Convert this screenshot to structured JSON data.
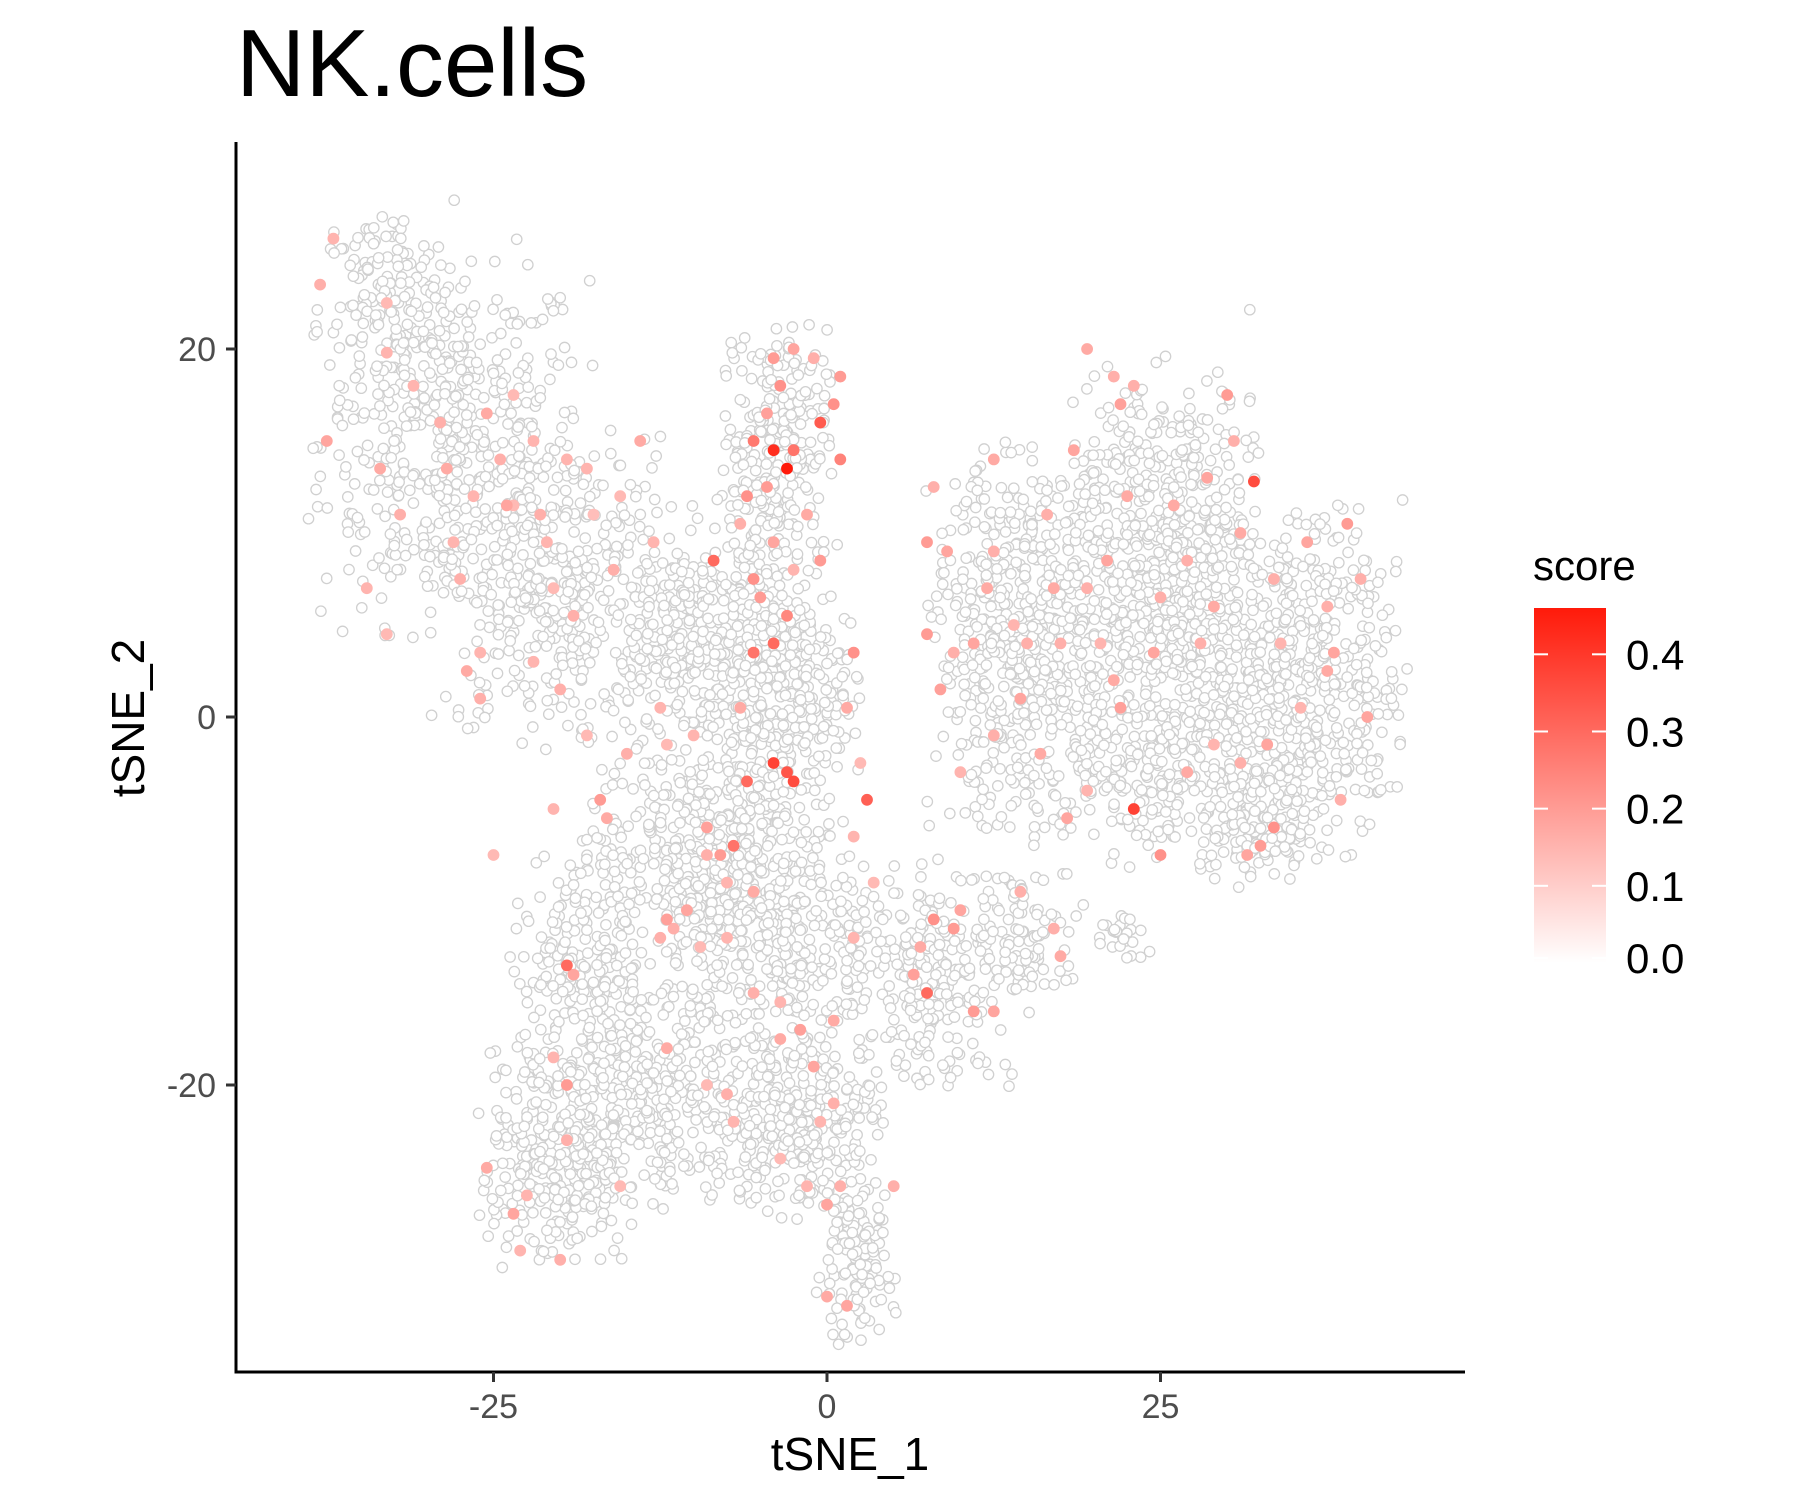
{
  "chart_data": {
    "type": "scatter",
    "title": "NK.cells",
    "xlabel": "tSNE_1",
    "ylabel": "tSNE_2",
    "xlim": [
      -45,
      48
    ],
    "ylim": [
      -36,
      31
    ],
    "x_ticks": [
      {
        "value": -25,
        "label": "-25"
      },
      {
        "value": 0,
        "label": "0"
      },
      {
        "value": 25,
        "label": "25"
      }
    ],
    "y_ticks": [
      {
        "value": -20,
        "label": "-20"
      },
      {
        "value": 0,
        "label": "0"
      },
      {
        "value": 20,
        "label": "20"
      }
    ],
    "grid": false,
    "point_outline_color": "#d0d0d0",
    "color_scale": {
      "title": "score",
      "low_color": "#ffffff",
      "high_color": "#ff1a0a",
      "min": 0,
      "max": 0.46,
      "breaks": [
        {
          "value": 0.0,
          "label": "0.0"
        },
        {
          "value": 0.1,
          "label": "0.1"
        },
        {
          "value": 0.2,
          "label": "0.2"
        },
        {
          "value": 0.3,
          "label": "0.3"
        },
        {
          "value": 0.4,
          "label": "0.4"
        }
      ],
      "legend_position": "right"
    },
    "points": [
      {
        "x": -37.5,
        "y": 15.0,
        "score": 0.18
      },
      {
        "x": -38.0,
        "y": 23.5,
        "score": 0.16
      },
      {
        "x": -33.5,
        "y": 13.5,
        "score": 0.17
      },
      {
        "x": -33.0,
        "y": 19.8,
        "score": 0.15
      },
      {
        "x": -32.0,
        "y": 11.0,
        "score": 0.16
      },
      {
        "x": -34.5,
        "y": 7.0,
        "score": 0.15
      },
      {
        "x": -33.0,
        "y": 4.5,
        "score": 0.14
      },
      {
        "x": -29.0,
        "y": 16.0,
        "score": 0.16
      },
      {
        "x": -28.5,
        "y": 13.5,
        "score": 0.17
      },
      {
        "x": -28.0,
        "y": 9.5,
        "score": 0.15
      },
      {
        "x": -27.5,
        "y": 7.5,
        "score": 0.16
      },
      {
        "x": -26.5,
        "y": 12.0,
        "score": 0.15
      },
      {
        "x": -25.5,
        "y": 16.5,
        "score": 0.17
      },
      {
        "x": -24.5,
        "y": 14.0,
        "score": 0.16
      },
      {
        "x": -24.0,
        "y": 11.5,
        "score": 0.18
      },
      {
        "x": -23.5,
        "y": 11.5,
        "score": 0.14
      },
      {
        "x": -22.0,
        "y": 15.0,
        "score": 0.15
      },
      {
        "x": -21.5,
        "y": 11.0,
        "score": 0.16
      },
      {
        "x": -21.0,
        "y": 9.5,
        "score": 0.15
      },
      {
        "x": -20.5,
        "y": 7.0,
        "score": 0.14
      },
      {
        "x": -19.0,
        "y": 5.5,
        "score": 0.16
      },
      {
        "x": -18.0,
        "y": 13.5,
        "score": 0.15
      },
      {
        "x": -16.0,
        "y": 8.0,
        "score": 0.16
      },
      {
        "x": -14.0,
        "y": 15.0,
        "score": 0.17
      },
      {
        "x": -15.5,
        "y": 12.0,
        "score": 0.14
      },
      {
        "x": -26.0,
        "y": 3.5,
        "score": 0.15
      },
      {
        "x": -27.0,
        "y": 2.5,
        "score": 0.17
      },
      {
        "x": -26.0,
        "y": 1.0,
        "score": 0.16
      },
      {
        "x": -22.0,
        "y": 3.0,
        "score": 0.15
      },
      {
        "x": -20.0,
        "y": 1.5,
        "score": 0.16
      },
      {
        "x": -18.0,
        "y": -1.0,
        "score": 0.14
      },
      {
        "x": -16.5,
        "y": -5.5,
        "score": 0.17
      },
      {
        "x": -17.0,
        "y": -4.5,
        "score": 0.2
      },
      {
        "x": -20.5,
        "y": -5.0,
        "score": 0.15
      },
      {
        "x": -25.0,
        "y": -7.5,
        "score": 0.14
      },
      {
        "x": -37.0,
        "y": 26.0,
        "score": 0.15
      },
      {
        "x": -33.0,
        "y": 22.5,
        "score": 0.14
      },
      {
        "x": -31.0,
        "y": 18.0,
        "score": 0.15
      },
      {
        "x": -23.5,
        "y": 17.5,
        "score": 0.14
      },
      {
        "x": -19.5,
        "y": 14.0,
        "score": 0.15
      },
      {
        "x": -17.5,
        "y": 11.0,
        "score": 0.13
      },
      {
        "x": -13.0,
        "y": 9.5,
        "score": 0.15
      },
      {
        "x": -4.0,
        "y": 19.5,
        "score": 0.2
      },
      {
        "x": -3.5,
        "y": 18.0,
        "score": 0.22
      },
      {
        "x": -2.5,
        "y": 20.0,
        "score": 0.18
      },
      {
        "x": -1.0,
        "y": 19.5,
        "score": 0.16
      },
      {
        "x": 1.0,
        "y": 18.5,
        "score": 0.2
      },
      {
        "x": 0.5,
        "y": 17.0,
        "score": 0.22
      },
      {
        "x": -4.5,
        "y": 16.5,
        "score": 0.19
      },
      {
        "x": -5.5,
        "y": 15.0,
        "score": 0.27
      },
      {
        "x": -4.0,
        "y": 14.5,
        "score": 0.42
      },
      {
        "x": -3.0,
        "y": 13.5,
        "score": 0.46
      },
      {
        "x": -2.5,
        "y": 14.5,
        "score": 0.28
      },
      {
        "x": -0.5,
        "y": 16.0,
        "score": 0.33
      },
      {
        "x": 1.0,
        "y": 14.0,
        "score": 0.25
      },
      {
        "x": -6.0,
        "y": 12.0,
        "score": 0.22
      },
      {
        "x": -4.5,
        "y": 12.5,
        "score": 0.2
      },
      {
        "x": -1.5,
        "y": 11.0,
        "score": 0.17
      },
      {
        "x": -6.5,
        "y": 10.5,
        "score": 0.16
      },
      {
        "x": -4.0,
        "y": 9.5,
        "score": 0.18
      },
      {
        "x": -8.5,
        "y": 8.5,
        "score": 0.3
      },
      {
        "x": -5.5,
        "y": 7.5,
        "score": 0.22
      },
      {
        "x": -2.5,
        "y": 8.0,
        "score": 0.15
      },
      {
        "x": -0.5,
        "y": 8.5,
        "score": 0.2
      },
      {
        "x": -5.0,
        "y": 6.5,
        "score": 0.2
      },
      {
        "x": -3.0,
        "y": 5.5,
        "score": 0.24
      },
      {
        "x": -4.0,
        "y": 4.0,
        "score": 0.3
      },
      {
        "x": -5.5,
        "y": 3.5,
        "score": 0.28
      },
      {
        "x": -6.5,
        "y": 0.5,
        "score": 0.17
      },
      {
        "x": -4.0,
        "y": -2.5,
        "score": 0.38
      },
      {
        "x": -3.0,
        "y": -3.0,
        "score": 0.34
      },
      {
        "x": -2.5,
        "y": -3.5,
        "score": 0.36
      },
      {
        "x": -6.0,
        "y": -3.5,
        "score": 0.3
      },
      {
        "x": -9.0,
        "y": -6.0,
        "score": 0.19
      },
      {
        "x": -7.0,
        "y": -7.0,
        "score": 0.28
      },
      {
        "x": -8.0,
        "y": -7.5,
        "score": 0.2
      },
      {
        "x": -5.5,
        "y": -9.5,
        "score": 0.17
      },
      {
        "x": -7.5,
        "y": -9.0,
        "score": 0.15
      },
      {
        "x": -10.5,
        "y": -10.5,
        "score": 0.18
      },
      {
        "x": -12.0,
        "y": -11.0,
        "score": 0.19
      },
      {
        "x": -11.5,
        "y": -11.5,
        "score": 0.16
      },
      {
        "x": -9.5,
        "y": -12.5,
        "score": 0.14
      },
      {
        "x": -12.5,
        "y": -12.0,
        "score": 0.16
      },
      {
        "x": -19.5,
        "y": -13.5,
        "score": 0.3
      },
      {
        "x": -19.0,
        "y": -14.0,
        "score": 0.18
      },
      {
        "x": -12.0,
        "y": -18.0,
        "score": 0.17
      },
      {
        "x": -20.5,
        "y": -18.5,
        "score": 0.15
      },
      {
        "x": -19.5,
        "y": -20.0,
        "score": 0.2
      },
      {
        "x": -9.0,
        "y": -20.0,
        "score": 0.14
      },
      {
        "x": -7.5,
        "y": -20.5,
        "score": 0.16
      },
      {
        "x": -7.0,
        "y": -22.0,
        "score": 0.15
      },
      {
        "x": -19.5,
        "y": -23.0,
        "score": 0.16
      },
      {
        "x": -25.5,
        "y": -24.5,
        "score": 0.17
      },
      {
        "x": -22.5,
        "y": -26.0,
        "score": 0.15
      },
      {
        "x": -23.5,
        "y": -27.0,
        "score": 0.18
      },
      {
        "x": -23.0,
        "y": -29.0,
        "score": 0.15
      },
      {
        "x": -20.0,
        "y": -29.5,
        "score": 0.16
      },
      {
        "x": -15.5,
        "y": -25.5,
        "score": 0.14
      },
      {
        "x": -5.5,
        "y": -15.0,
        "score": 0.16
      },
      {
        "x": -3.5,
        "y": -15.5,
        "score": 0.15
      },
      {
        "x": -2.0,
        "y": -17.0,
        "score": 0.19
      },
      {
        "x": -3.5,
        "y": -17.5,
        "score": 0.17
      },
      {
        "x": 0.5,
        "y": -16.5,
        "score": 0.17
      },
      {
        "x": -1.0,
        "y": -19.0,
        "score": 0.18
      },
      {
        "x": 0.5,
        "y": -21.0,
        "score": 0.16
      },
      {
        "x": -0.5,
        "y": -22.0,
        "score": 0.15
      },
      {
        "x": -3.5,
        "y": -24.0,
        "score": 0.14
      },
      {
        "x": -1.5,
        "y": -25.5,
        "score": 0.15
      },
      {
        "x": 0.0,
        "y": -26.5,
        "score": 0.18
      },
      {
        "x": 1.0,
        "y": -25.5,
        "score": 0.16
      },
      {
        "x": 0.0,
        "y": -31.5,
        "score": 0.17
      },
      {
        "x": 1.5,
        "y": -32.0,
        "score": 0.18
      },
      {
        "x": 5.0,
        "y": -25.5,
        "score": 0.16
      },
      {
        "x": 2.0,
        "y": -6.5,
        "score": 0.15
      },
      {
        "x": 3.0,
        "y": -4.5,
        "score": 0.32
      },
      {
        "x": 2.5,
        "y": -2.5,
        "score": 0.14
      },
      {
        "x": 1.5,
        "y": 0.5,
        "score": 0.17
      },
      {
        "x": 2.0,
        "y": 3.5,
        "score": 0.22
      },
      {
        "x": 8.0,
        "y": 12.5,
        "score": 0.16
      },
      {
        "x": 7.5,
        "y": 9.5,
        "score": 0.2
      },
      {
        "x": 9.0,
        "y": 9.0,
        "score": 0.18
      },
      {
        "x": 7.5,
        "y": 4.5,
        "score": 0.2
      },
      {
        "x": 8.5,
        "y": 1.5,
        "score": 0.19
      },
      {
        "x": 9.5,
        "y": 3.5,
        "score": 0.16
      },
      {
        "x": 11.0,
        "y": 4.0,
        "score": 0.18
      },
      {
        "x": 12.0,
        "y": 7.0,
        "score": 0.17
      },
      {
        "x": 12.5,
        "y": 9.0,
        "score": 0.16
      },
      {
        "x": 12.5,
        "y": 14.0,
        "score": 0.17
      },
      {
        "x": 14.0,
        "y": 5.0,
        "score": 0.15
      },
      {
        "x": 15.0,
        "y": 4.0,
        "score": 0.16
      },
      {
        "x": 14.5,
        "y": 1.0,
        "score": 0.18
      },
      {
        "x": 16.5,
        "y": 11.0,
        "score": 0.16
      },
      {
        "x": 17.0,
        "y": 7.0,
        "score": 0.17
      },
      {
        "x": 17.5,
        "y": 4.0,
        "score": 0.16
      },
      {
        "x": 18.5,
        "y": 14.5,
        "score": 0.18
      },
      {
        "x": 19.5,
        "y": 20.0,
        "score": 0.17
      },
      {
        "x": 21.5,
        "y": 18.5,
        "score": 0.16
      },
      {
        "x": 22.0,
        "y": 17.0,
        "score": 0.19
      },
      {
        "x": 23.0,
        "y": 18.0,
        "score": 0.16
      },
      {
        "x": 22.5,
        "y": 12.0,
        "score": 0.17
      },
      {
        "x": 21.0,
        "y": 8.5,
        "score": 0.18
      },
      {
        "x": 19.5,
        "y": 7.0,
        "score": 0.16
      },
      {
        "x": 20.5,
        "y": 4.0,
        "score": 0.15
      },
      {
        "x": 21.5,
        "y": 2.0,
        "score": 0.17
      },
      {
        "x": 22.0,
        "y": 0.5,
        "score": 0.19
      },
      {
        "x": 23.0,
        "y": -5.0,
        "score": 0.38
      },
      {
        "x": 24.5,
        "y": 3.5,
        "score": 0.18
      },
      {
        "x": 25.0,
        "y": 6.5,
        "score": 0.16
      },
      {
        "x": 26.0,
        "y": 11.5,
        "score": 0.17
      },
      {
        "x": 27.0,
        "y": 8.5,
        "score": 0.16
      },
      {
        "x": 28.5,
        "y": 13.0,
        "score": 0.18
      },
      {
        "x": 29.0,
        "y": 6.0,
        "score": 0.17
      },
      {
        "x": 28.0,
        "y": 4.0,
        "score": 0.16
      },
      {
        "x": 30.0,
        "y": 17.5,
        "score": 0.2
      },
      {
        "x": 30.5,
        "y": 15.0,
        "score": 0.16
      },
      {
        "x": 32.0,
        "y": 12.8,
        "score": 0.36
      },
      {
        "x": 31.0,
        "y": 10.0,
        "score": 0.17
      },
      {
        "x": 33.5,
        "y": 7.5,
        "score": 0.16
      },
      {
        "x": 34.0,
        "y": 4.0,
        "score": 0.15
      },
      {
        "x": 36.0,
        "y": 9.5,
        "score": 0.18
      },
      {
        "x": 37.5,
        "y": 6.0,
        "score": 0.16
      },
      {
        "x": 39.0,
        "y": 10.5,
        "score": 0.2
      },
      {
        "x": 40.0,
        "y": 7.5,
        "score": 0.16
      },
      {
        "x": 38.0,
        "y": 3.5,
        "score": 0.18
      },
      {
        "x": 37.5,
        "y": 2.5,
        "score": 0.17
      },
      {
        "x": 35.5,
        "y": 0.5,
        "score": 0.15
      },
      {
        "x": 33.0,
        "y": -1.5,
        "score": 0.18
      },
      {
        "x": 31.0,
        "y": -2.5,
        "score": 0.16
      },
      {
        "x": 29.0,
        "y": -1.5,
        "score": 0.15
      },
      {
        "x": 27.0,
        "y": -3.0,
        "score": 0.17
      },
      {
        "x": 25.0,
        "y": -7.5,
        "score": 0.22
      },
      {
        "x": 31.5,
        "y": -7.5,
        "score": 0.18
      },
      {
        "x": 32.5,
        "y": -7.0,
        "score": 0.2
      },
      {
        "x": 33.5,
        "y": -6.0,
        "score": 0.22
      },
      {
        "x": 38.5,
        "y": -4.5,
        "score": 0.16
      },
      {
        "x": 40.5,
        "y": 0.0,
        "score": 0.18
      },
      {
        "x": 12.5,
        "y": -1.0,
        "score": 0.16
      },
      {
        "x": 10.0,
        "y": -3.0,
        "score": 0.15
      },
      {
        "x": 16.0,
        "y": -2.0,
        "score": 0.17
      },
      {
        "x": 18.0,
        "y": -5.5,
        "score": 0.18
      },
      {
        "x": 19.5,
        "y": -4.0,
        "score": 0.15
      },
      {
        "x": 14.5,
        "y": -9.5,
        "score": 0.16
      },
      {
        "x": 8.0,
        "y": -11.0,
        "score": 0.22
      },
      {
        "x": 9.5,
        "y": -11.5,
        "score": 0.2
      },
      {
        "x": 10.0,
        "y": -10.5,
        "score": 0.18
      },
      {
        "x": 7.0,
        "y": -12.5,
        "score": 0.17
      },
      {
        "x": 6.5,
        "y": -14.0,
        "score": 0.19
      },
      {
        "x": 7.5,
        "y": -15.0,
        "score": 0.3
      },
      {
        "x": 11.0,
        "y": -16.0,
        "score": 0.2
      },
      {
        "x": 12.5,
        "y": -16.0,
        "score": 0.18
      },
      {
        "x": 17.0,
        "y": -11.5,
        "score": 0.16
      },
      {
        "x": 17.5,
        "y": -13.0,
        "score": 0.17
      },
      {
        "x": -10.0,
        "y": -1.0,
        "score": 0.15
      },
      {
        "x": -12.0,
        "y": -1.5,
        "score": 0.14
      },
      {
        "x": -15.0,
        "y": -2.0,
        "score": 0.16
      },
      {
        "x": -12.5,
        "y": 0.5,
        "score": 0.15
      },
      {
        "x": -9.0,
        "y": -7.5,
        "score": 0.16
      },
      {
        "x": 3.5,
        "y": -9.0,
        "score": 0.14
      },
      {
        "x": 2.0,
        "y": -12.0,
        "score": 0.15
      },
      {
        "x": -7.5,
        "y": -12.0,
        "score": 0.15
      }
    ],
    "background_points": {
      "note": "Thousands of low-score cells (score ~0.0) rendered as hollow white circles with light grey outlines, forming three clusters: an upper-left arm, a central region extending downward, and a large right cluster.",
      "score": 0.0,
      "regions": [
        {
          "cx": -28,
          "cy": 15,
          "rx": 10,
          "ry": 10,
          "n": 500
        },
        {
          "cx": -33,
          "cy": 22,
          "rx": 5,
          "ry": 6,
          "n": 150
        },
        {
          "cx": -20,
          "cy": 7,
          "rx": 9,
          "ry": 8,
          "n": 450
        },
        {
          "cx": -10,
          "cy": 4,
          "rx": 6,
          "ry": 6,
          "n": 250
        },
        {
          "cx": -4,
          "cy": 15,
          "rx": 4,
          "ry": 6,
          "n": 250
        },
        {
          "cx": -4,
          "cy": 2,
          "rx": 6,
          "ry": 9,
          "n": 500
        },
        {
          "cx": -10,
          "cy": -7,
          "rx": 8,
          "ry": 6,
          "n": 350
        },
        {
          "cx": -4,
          "cy": -12,
          "rx": 8,
          "ry": 6,
          "n": 400
        },
        {
          "cx": -18,
          "cy": -14,
          "rx": 6,
          "ry": 6,
          "n": 250
        },
        {
          "cx": -20,
          "cy": -24,
          "rx": 6,
          "ry": 6,
          "n": 350
        },
        {
          "cx": -12,
          "cy": -21,
          "rx": 6,
          "ry": 5,
          "n": 250
        },
        {
          "cx": -2,
          "cy": -22,
          "rx": 6,
          "ry": 5,
          "n": 350
        },
        {
          "cx": 2,
          "cy": -30,
          "rx": 3,
          "ry": 4,
          "n": 120
        },
        {
          "cx": 8,
          "cy": -14,
          "rx": 6,
          "ry": 6,
          "n": 250
        },
        {
          "cx": 15,
          "cy": -12,
          "rx": 4,
          "ry": 4,
          "n": 100
        },
        {
          "cx": 22,
          "cy": -12,
          "rx": 2,
          "ry": 1.5,
          "n": 25
        },
        {
          "cx": 15,
          "cy": 4,
          "rx": 7,
          "ry": 10,
          "n": 650
        },
        {
          "cx": 25,
          "cy": 8,
          "rx": 7,
          "ry": 11,
          "n": 750
        },
        {
          "cx": 35,
          "cy": 2,
          "rx": 8,
          "ry": 9,
          "n": 650
        },
        {
          "cx": 24,
          "cy": -4,
          "rx": 6,
          "ry": 4,
          "n": 150
        },
        {
          "cx": 32,
          "cy": -6,
          "rx": 4,
          "ry": 3,
          "n": 150
        }
      ]
    }
  }
}
